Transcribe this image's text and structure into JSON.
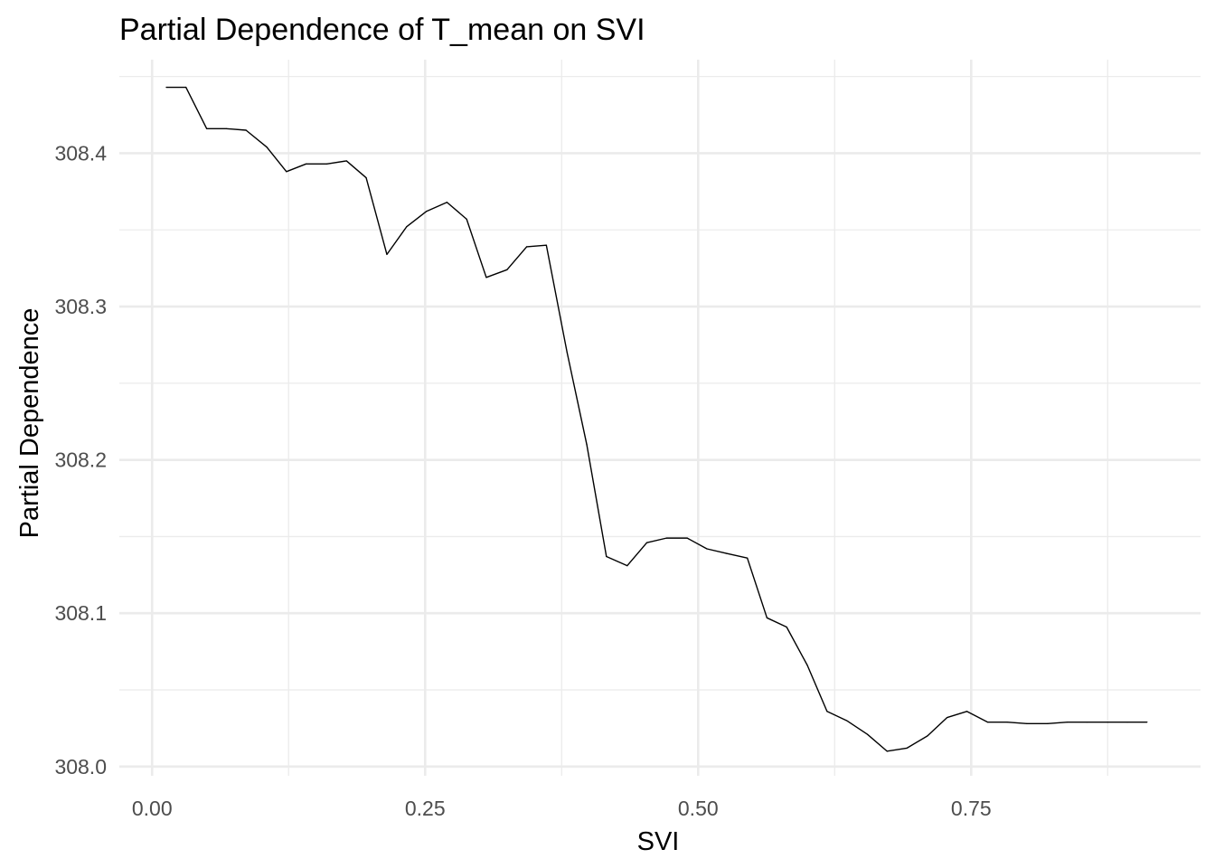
{
  "chart_data": {
    "type": "line",
    "title": "Partial Dependence of T_mean on SVI",
    "xlabel": "SVI",
    "ylabel": "Partial Dependence",
    "xlim": [
      -0.03,
      0.96
    ],
    "ylim": [
      307.994,
      308.461
    ],
    "x_ticks": [
      0.0,
      0.25,
      0.5,
      0.75
    ],
    "x_tick_labels": [
      "0.00",
      "0.25",
      "0.50",
      "0.75"
    ],
    "y_ticks": [
      308.0,
      308.1,
      308.2,
      308.3,
      308.4
    ],
    "y_tick_labels": [
      "308.0",
      "308.1",
      "308.2",
      "308.3",
      "308.4"
    ],
    "grid": true,
    "legend": "none",
    "series": [
      {
        "color": "#000000",
        "x": [
          0.013,
          0.031,
          0.05,
          0.068,
          0.086,
          0.105,
          0.123,
          0.141,
          0.16,
          0.178,
          0.196,
          0.215,
          0.233,
          0.251,
          0.27,
          0.288,
          0.306,
          0.325,
          0.343,
          0.361,
          0.38,
          0.398,
          0.416,
          0.435,
          0.453,
          0.471,
          0.49,
          0.508,
          0.526,
          0.545,
          0.563,
          0.581,
          0.6,
          0.618,
          0.636,
          0.655,
          0.673,
          0.691,
          0.71,
          0.728,
          0.746,
          0.765,
          0.783,
          0.801,
          0.82,
          0.838,
          0.856,
          0.875,
          0.893,
          0.911
        ],
        "y": [
          308.443,
          308.443,
          308.416,
          308.416,
          308.415,
          308.404,
          308.388,
          308.393,
          308.393,
          308.395,
          308.384,
          308.334,
          308.352,
          308.362,
          308.368,
          308.357,
          308.319,
          308.324,
          308.339,
          308.34,
          308.27,
          308.21,
          308.137,
          308.131,
          308.146,
          308.149,
          308.149,
          308.142,
          308.139,
          308.136,
          308.097,
          308.091,
          308.066,
          308.036,
          308.03,
          308.021,
          308.01,
          308.012,
          308.02,
          308.032,
          308.036,
          308.029,
          308.029,
          308.028,
          308.028,
          308.029,
          308.029,
          308.029,
          308.029,
          308.029
        ]
      }
    ]
  }
}
